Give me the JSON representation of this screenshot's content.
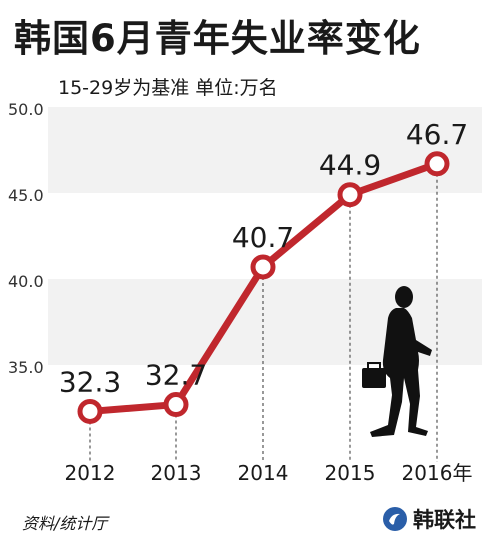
{
  "chart_data": {
    "type": "line",
    "title": "韩国6月青年失业率变化",
    "subtitle": "15-29岁为基准 单位:万名",
    "categories": [
      "2012",
      "2013",
      "2014",
      "2015",
      "2016年"
    ],
    "values": [
      32.3,
      32.7,
      40.7,
      44.9,
      46.7
    ],
    "value_labels": [
      "32.3",
      "32.7",
      "40.7",
      "44.9",
      "46.7"
    ],
    "y_ticks": [
      "50.0",
      "45.0",
      "40.0",
      "35.0"
    ],
    "ylim": [
      30.0,
      50.0
    ],
    "grid": false,
    "banded_background": true,
    "line_color": "#c0272d",
    "band_color": "#f2f2f2",
    "source": "资料/统计厅",
    "agency": "韩联社",
    "decorations": [
      "businessman-silhouette-icon",
      "yonhap-logo-icon"
    ]
  }
}
